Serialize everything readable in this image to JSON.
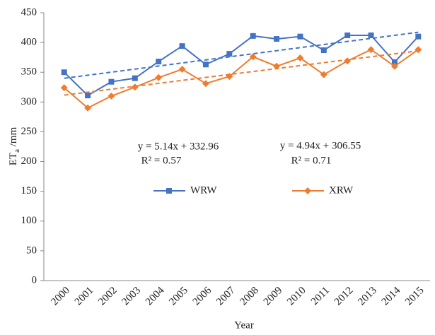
{
  "chart_data": {
    "type": "line",
    "categories": [
      "2000",
      "2001",
      "2002",
      "2003",
      "2004",
      "2005",
      "2006",
      "2007",
      "2008",
      "2009",
      "2010",
      "2011",
      "2012",
      "2013",
      "2014",
      "2015"
    ],
    "series": [
      {
        "name": "WRW",
        "color": "#4472c4",
        "marker": "square",
        "trendline": true,
        "values": [
          350,
          311,
          334,
          340,
          368,
          394,
          363,
          381,
          411,
          406,
          410,
          387,
          412,
          412,
          367,
          410
        ]
      },
      {
        "name": "XRW",
        "color": "#ed7d31",
        "marker": "diamond",
        "trendline": true,
        "values": [
          324,
          290,
          310,
          325,
          341,
          355,
          331,
          343,
          376,
          360,
          374,
          346,
          369,
          388,
          360,
          388
        ]
      }
    ],
    "annotations": [
      {
        "equation": "y = 5.14x + 332.96",
        "r2": "R² = 0.57"
      },
      {
        "equation": "y = 4.94x + 306.55",
        "r2": "R² = 0.71"
      }
    ],
    "x_label": "Year",
    "y_label": [
      "ET",
      "a",
      " /mm"
    ],
    "ylim": [
      0,
      450
    ],
    "yticks": [
      0,
      50,
      100,
      150,
      200,
      250,
      300,
      350,
      400,
      450
    ]
  }
}
